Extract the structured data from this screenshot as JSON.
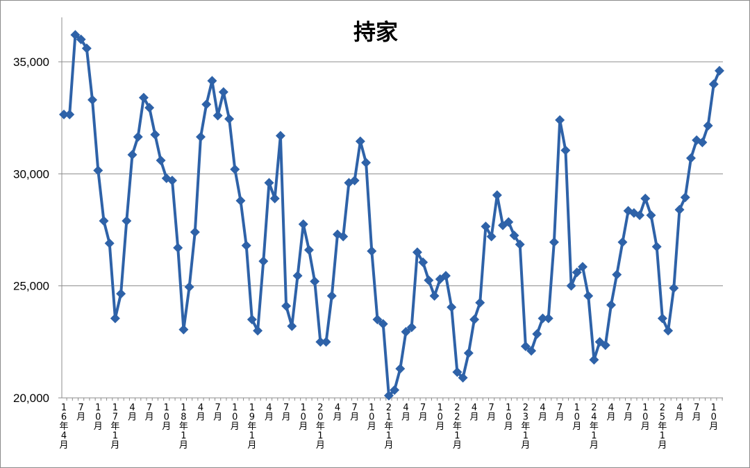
{
  "chart_data": {
    "type": "line",
    "title": "持家",
    "xlabel": "",
    "ylabel": "",
    "ylim": [
      20000,
      36500
    ],
    "yticks": [
      20000,
      25000,
      30000,
      35000
    ],
    "ytick_labels": [
      "20,000",
      "25,000",
      "30,000",
      "35,000"
    ],
    "grid": "horizontal",
    "legend": "none",
    "colors": {
      "series": "#2E62A8",
      "grid": "#8C8C8C",
      "axis": "#8C8C8C"
    },
    "x_tick_labels": [
      {
        "index": 0,
        "label": "16年4月"
      },
      {
        "index": 3,
        "label": "7月"
      },
      {
        "index": 6,
        "label": "10月"
      },
      {
        "index": 9,
        "label": "17年1月"
      },
      {
        "index": 12,
        "label": "4月"
      },
      {
        "index": 15,
        "label": "7月"
      },
      {
        "index": 18,
        "label": "10月"
      },
      {
        "index": 21,
        "label": "18年1月"
      },
      {
        "index": 24,
        "label": "4月"
      },
      {
        "index": 27,
        "label": "7月"
      },
      {
        "index": 30,
        "label": "10月"
      },
      {
        "index": 33,
        "label": "19年1月"
      },
      {
        "index": 36,
        "label": "4月"
      },
      {
        "index": 39,
        "label": "7月"
      },
      {
        "index": 42,
        "label": "10月"
      },
      {
        "index": 45,
        "label": "20年1月"
      },
      {
        "index": 48,
        "label": "4月"
      },
      {
        "index": 51,
        "label": "7月"
      },
      {
        "index": 54,
        "label": "10月"
      },
      {
        "index": 57,
        "label": "21年1月"
      },
      {
        "index": 60,
        "label": "4月"
      },
      {
        "index": 63,
        "label": "7月"
      },
      {
        "index": 66,
        "label": "10月"
      },
      {
        "index": 69,
        "label": "22年1月"
      },
      {
        "index": 72,
        "label": "4月"
      },
      {
        "index": 75,
        "label": "7月"
      },
      {
        "index": 78,
        "label": "10月"
      },
      {
        "index": 81,
        "label": "23年1月"
      },
      {
        "index": 84,
        "label": "4月"
      },
      {
        "index": 87,
        "label": "7月"
      },
      {
        "index": 90,
        "label": "10月"
      },
      {
        "index": 93,
        "label": "24年1月"
      },
      {
        "index": 96,
        "label": "4月"
      },
      {
        "index": 99,
        "label": "7月"
      },
      {
        "index": 102,
        "label": "10月"
      },
      {
        "index": 105,
        "label": "25年1月"
      },
      {
        "index": 108,
        "label": "4月"
      },
      {
        "index": 111,
        "label": "7月"
      },
      {
        "index": 114,
        "label": "10月"
      }
    ],
    "series": [
      {
        "values": [
          32650,
          32650,
          36200,
          36000,
          35600,
          33300,
          30150,
          27900,
          26900,
          23550,
          24650,
          27900,
          30850,
          31650,
          33400,
          32950,
          31750,
          30600,
          29800,
          29700,
          26700,
          23050,
          24950,
          27400,
          31650,
          33100,
          34150,
          32600,
          33650,
          32450,
          30200,
          28800,
          26800,
          23500,
          23000,
          26100,
          29600,
          28900,
          31700,
          24100,
          23200,
          25450,
          27750,
          26600,
          25200,
          22500,
          22500,
          24550,
          27300,
          27200,
          29600,
          29700,
          31450,
          30500,
          26550,
          23500,
          23300,
          20100,
          20350,
          21300,
          22950,
          23150,
          26500,
          26050,
          25250,
          24550,
          25300,
          25450,
          24050,
          21150,
          20900,
          22000,
          23500,
          24250,
          27650,
          27200,
          29050,
          27700,
          27850,
          27250,
          26850,
          22300,
          22100,
          22850,
          23550,
          23550,
          26950,
          32400,
          31050,
          25000,
          25600,
          25850,
          24550,
          21700,
          22500,
          22350,
          24150,
          25500,
          26950,
          28350,
          28250,
          28150,
          28900,
          28150,
          26750,
          23550,
          23000,
          24900,
          28400,
          28950,
          30700,
          31500,
          31400,
          32150,
          34000,
          34600
        ]
      }
    ]
  }
}
